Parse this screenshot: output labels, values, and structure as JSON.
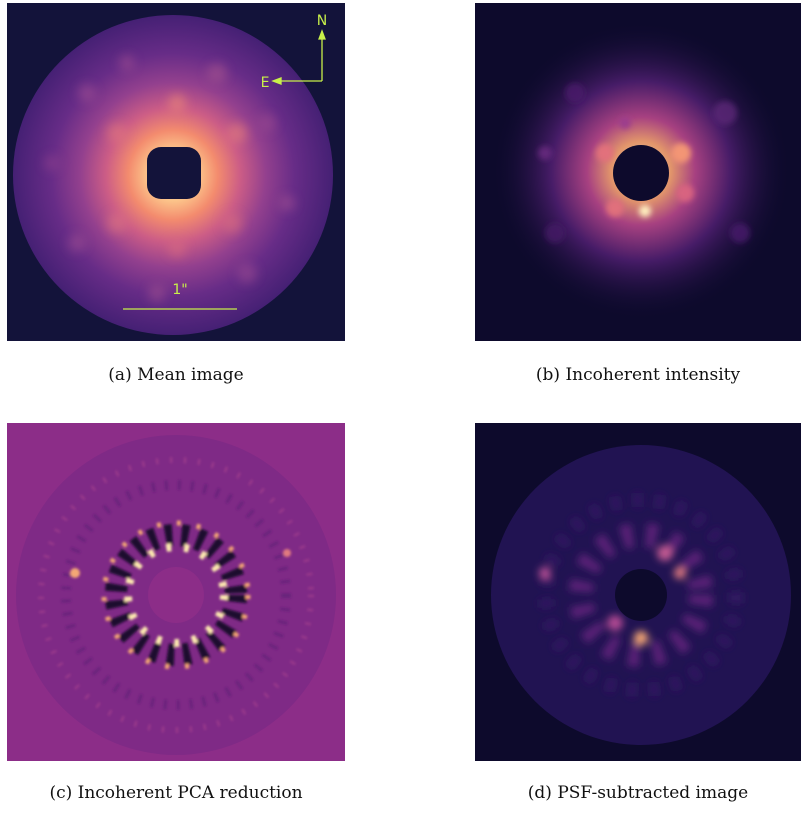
{
  "figure": {
    "panels": [
      {
        "id": "a",
        "caption": "(a) Mean image",
        "overlays": {
          "north_label": "N",
          "east_label": "E",
          "scale_label": "1\""
        },
        "colors": {
          "background": "#13133a",
          "overlay": "#c8f04a"
        }
      },
      {
        "id": "b",
        "caption": "(b) Incoherent intensity",
        "colors": {
          "background": "#0d0a2c"
        }
      },
      {
        "id": "c",
        "caption": "(c) Incoherent PCA reduction",
        "colors": {
          "background": "#8c2d88"
        }
      },
      {
        "id": "d",
        "caption": "(d) PSF-subtracted image",
        "colors": {
          "background": "#0d0a2c"
        }
      }
    ],
    "colormap": "magma"
  }
}
